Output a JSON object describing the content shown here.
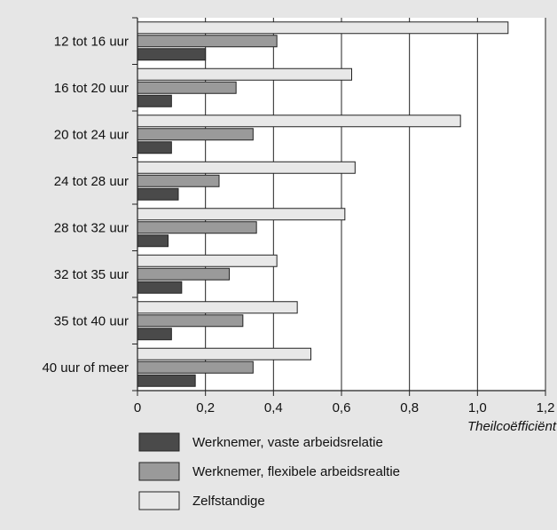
{
  "chart_data": {
    "type": "bar",
    "orientation": "horizontal",
    "categories": [
      "12 tot 16 uur",
      "16 tot 20 uur",
      "20 tot 24 uur",
      "24 tot 28 uur",
      "28 tot 32 uur",
      "32 tot 35 uur",
      "35 tot 40 uur",
      "40 uur of meer"
    ],
    "series": [
      {
        "name": "Werknemer, vaste arbeidsrelatie",
        "color": "#4a4a4a",
        "values": [
          0.2,
          0.1,
          0.1,
          0.12,
          0.09,
          0.13,
          0.1,
          0.17
        ]
      },
      {
        "name": "Werknemer, flexibele arbeidsrealtie",
        "color": "#9a9a9a",
        "values": [
          0.41,
          0.29,
          0.34,
          0.24,
          0.35,
          0.27,
          0.31,
          0.34
        ]
      },
      {
        "name": "Zelfstandige",
        "color": "#e8e8e8",
        "values": [
          1.09,
          0.63,
          0.95,
          0.64,
          0.61,
          0.41,
          0.47,
          0.51
        ]
      }
    ],
    "xticks": [
      "0",
      "0,2",
      "0,4",
      "0,6",
      "0,8",
      "1,0",
      "1,2"
    ],
    "xlim": [
      0,
      1.2
    ],
    "xlabel": "Theilcoëfficiënt",
    "ylabel": "",
    "title": "",
    "grid": "vertical",
    "legend_position": "bottom"
  }
}
